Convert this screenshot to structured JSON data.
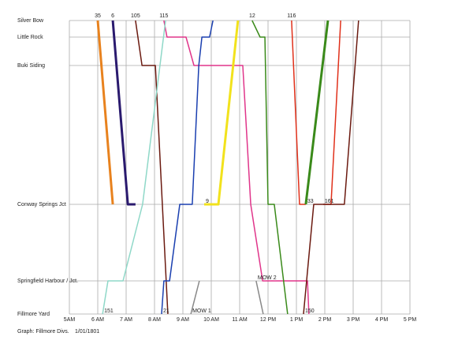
{
  "chart_data": {
    "type": "line",
    "grid": true,
    "caption": "Graph: Fillmore Divs.",
    "date": "1/01/1801",
    "xlim": [
      5,
      17
    ],
    "xticks": [
      {
        "value": 5,
        "label": "5AM"
      },
      {
        "value": 6,
        "label": "6 AM"
      },
      {
        "value": 7,
        "label": "7 AM"
      },
      {
        "value": 8,
        "label": "8 AM"
      },
      {
        "value": 9,
        "label": "9 AM"
      },
      {
        "value": 10,
        "label": "10 AM"
      },
      {
        "value": 11,
        "label": "11 AM"
      },
      {
        "value": 12,
        "label": "12 PM"
      },
      {
        "value": 13,
        "label": "1 PM"
      },
      {
        "value": 14,
        "label": "2 PM"
      },
      {
        "value": 15,
        "label": "3 PM"
      },
      {
        "value": 16,
        "label": "4 PM"
      },
      {
        "value": 17,
        "label": "5 PM"
      }
    ],
    "ylim": [
      0,
      372
    ],
    "yticks": [
      {
        "value": 372,
        "label": "Silver Bow"
      },
      {
        "value": 351,
        "label": "Little Rock"
      },
      {
        "value": 315,
        "label": "Buki Siding"
      },
      {
        "value": 139,
        "label": "Conway Springs Jct"
      },
      {
        "value": 42,
        "label": "Springfield Harbour / Jct."
      },
      {
        "value": 0,
        "label": "Fillmore Yard"
      }
    ],
    "series": [
      {
        "name": "35",
        "color": "#e8821e",
        "width": 3,
        "x": [
          6.0,
          6.53
        ],
        "values": [
          372,
          139
        ]
      },
      {
        "name": "6",
        "color": "#2a1a6e",
        "width": 3,
        "x": [
          6.53,
          7.06,
          7.33
        ],
        "values": [
          372,
          139,
          139
        ]
      },
      {
        "name": "105",
        "color": "#6b1a10",
        "width": 1.5,
        "x": [
          7.33,
          7.56,
          8.03,
          8.47
        ],
        "values": [
          372,
          315,
          315,
          0
        ]
      },
      {
        "name": "115",
        "color": "#e0358a",
        "width": 1.5,
        "x": [
          8.33,
          8.44,
          9.11,
          9.39,
          11.11,
          11.39,
          11.81,
          13.39,
          13.44
        ],
        "values": [
          372,
          351,
          351,
          315,
          315,
          139,
          42,
          42,
          0
        ]
      },
      {
        "name": "151",
        "color": "#8fd8c8",
        "width": 1.5,
        "x": [
          6.17,
          6.36,
          6.89,
          7.58,
          8.39
        ],
        "values": [
          0,
          42,
          42,
          139,
          372
        ]
      },
      {
        "name": "21",
        "color": "#1a3fb0",
        "width": 1.5,
        "x": [
          8.25,
          8.33,
          8.53,
          8.89,
          9.33,
          9.56,
          9.67,
          9.94,
          10.06
        ],
        "values": [
          0,
          42,
          42,
          139,
          139,
          315,
          351,
          351,
          372
        ]
      },
      {
        "name": "9",
        "color": "#f2e21c",
        "width": 3,
        "x": [
          9.75,
          10.25,
          10.94
        ],
        "values": [
          139,
          139,
          372
        ]
      },
      {
        "name": "12",
        "color": "#3a8a1a",
        "width": 1.5,
        "x": [
          11.44,
          11.72,
          11.89,
          12.0,
          12.22,
          12.69
        ],
        "values": [
          372,
          351,
          351,
          139,
          139,
          0
        ]
      },
      {
        "name": "116",
        "color": "#e0301a",
        "width": 1.5,
        "x": [
          12.83,
          13.11,
          13.33
        ],
        "values": [
          372,
          139,
          139
        ]
      },
      {
        "name": "33",
        "color": "#3a8a1a",
        "width": 3,
        "x": [
          13.33,
          14.11
        ],
        "values": [
          139,
          372
        ]
      },
      {
        "name": "161",
        "color": "#e0301a",
        "width": 1.5,
        "x": [
          13.94,
          14.22,
          14.56
        ],
        "values": [
          139,
          139,
          372
        ]
      },
      {
        "name": "150",
        "color": "#6b1a10",
        "width": 1.5,
        "x": [
          13.25,
          13.61,
          14.69,
          15.19
        ],
        "values": [
          0,
          139,
          139,
          372
        ]
      },
      {
        "name": "MOW 1",
        "color": "#888888",
        "width": 1.5,
        "x": [
          9.28,
          9.58
        ],
        "values": [
          0,
          42
        ]
      },
      {
        "name": "MOW 2",
        "color": "#888888",
        "width": 1.5,
        "x": [
          11.58,
          11.83
        ],
        "values": [
          42,
          0
        ]
      }
    ]
  }
}
